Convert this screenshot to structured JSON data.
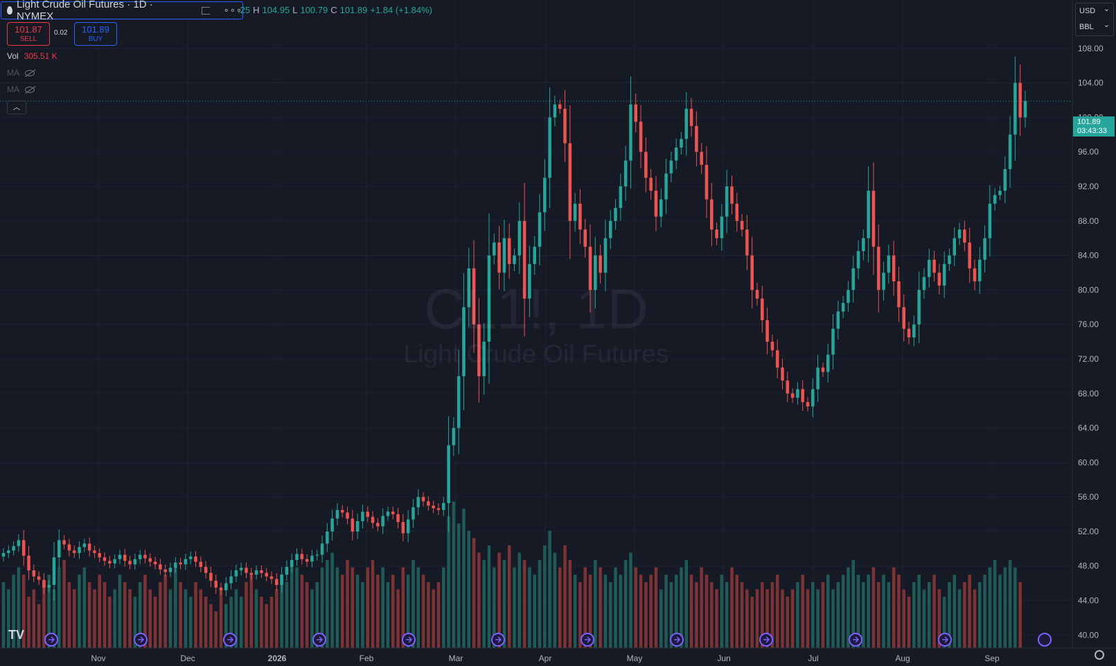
{
  "header": {
    "symbol_title": "Light Crude Oil Futures · 1D · NYMEX",
    "dots": "∘∘∘",
    "ohlc_open_fragment": ".25",
    "ohlc_h_label": "H",
    "ohlc_h": "104.95",
    "ohlc_l_label": "L",
    "ohlc_l": "100.79",
    "ohlc_c_label": "C",
    "ohlc_c": "101.89",
    "ohlc_change": "+1.84 (+1.84%)"
  },
  "trade": {
    "sell_price": "101.87",
    "sell_label": "SELL",
    "spread": "0.02",
    "buy_price": "101.89",
    "buy_label": "BUY"
  },
  "indicators": {
    "vol_label": "Vol",
    "vol_value": "305.51 K",
    "ma1_label": "MA",
    "ma2_label": "MA"
  },
  "watermark": {
    "symbol": "CL1!, 1D",
    "name": "Light Crude Oil Futures"
  },
  "scale": {
    "currency": "USD",
    "unit": "BBL"
  },
  "last_price": {
    "price": "101.89",
    "countdown": "03:43:33"
  },
  "colors": {
    "background": "#161a25",
    "up": "#26a69a",
    "down": "#ef5350",
    "vol_up": "#1e5a56",
    "vol_down": "#7d3235",
    "grid": "#1f2330",
    "axis_text": "#b2b5be",
    "event_icon": "#7b61ff"
  },
  "chart_data": {
    "type": "candlestick",
    "y_range": [
      38.5,
      112.0
    ],
    "y_ticks": [
      "40.00",
      "44.00",
      "48.00",
      "52.00",
      "56.00",
      "60.00",
      "64.00",
      "68.00",
      "72.00",
      "76.00",
      "80.00",
      "84.00",
      "88.00",
      "92.00",
      "96.00",
      "100.00",
      "104.00",
      "108.00"
    ],
    "x_labels": [
      "Nov",
      "Dec",
      "2026",
      "Feb",
      "Mar",
      "Apr",
      "May",
      "Jun",
      "Jul",
      "Aug",
      "Sep"
    ],
    "close_series": [
      49.5,
      49.8,
      50.3,
      51.0,
      49.2,
      47.5,
      46.8,
      46.4,
      45.5,
      45.8,
      49.0,
      51.0,
      50.5,
      49.8,
      49.5,
      50.2,
      50.6,
      49.8,
      49.5,
      49.0,
      48.6,
      48.3,
      48.8,
      49.3,
      48.6,
      48.2,
      48.8,
      49.3,
      48.9,
      48.5,
      48.2,
      47.6,
      47.3,
      47.8,
      48.4,
      48.2,
      48.8,
      49.1,
      48.5,
      47.9,
      47.2,
      46.3,
      45.5,
      45.2,
      46.0,
      46.8,
      47.5,
      47.8,
      47.2,
      47.0,
      47.5,
      47.2,
      46.8,
      46.5,
      45.8,
      47.0,
      47.9,
      48.7,
      49.4,
      48.8,
      48.5,
      49.2,
      49.3,
      50.6,
      52.0,
      53.5,
      54.5,
      54.2,
      53.5,
      52.0,
      53.2,
      54.3,
      53.7,
      53.0,
      52.6,
      53.8,
      54.3,
      54.0,
      53.1,
      51.8,
      53.4,
      54.8,
      56.0,
      55.5,
      55.0,
      54.7,
      54.5,
      55.3,
      62.0,
      64.0,
      70.0,
      78.0,
      82.5,
      76.0,
      70.0,
      74.0,
      84.0,
      85.5,
      82.0,
      86.0,
      83.0,
      84.0,
      88.0,
      79.0,
      83.0,
      85.0,
      89.0,
      93.0,
      100.0,
      101.5,
      101.0,
      97.0,
      88.0,
      90.0,
      87.0,
      85.0,
      80.0,
      84.0,
      82.0,
      86.0,
      88.0,
      89.5,
      92.0,
      95.0,
      101.5,
      99.5,
      96.0,
      93.0,
      91.5,
      88.5,
      90.5,
      93.5,
      95.0,
      96.5,
      97.5,
      101.0,
      99.0,
      96.0,
      94.5,
      90.5,
      87.0,
      86.0,
      88.5,
      92.0,
      90.0,
      88.0,
      87.0,
      84.0,
      80.0,
      79.0,
      76.5,
      74.0,
      73.0,
      71.0,
      69.5,
      68.0,
      67.5,
      68.5,
      67.0,
      66.5,
      68.5,
      71.0,
      70.5,
      72.5,
      75.5,
      77.5,
      78.5,
      80.0,
      82.5,
      84.5,
      86.0,
      91.5,
      85.0,
      80.0,
      82.0,
      84.0,
      81.0,
      78.0,
      75.5,
      74.5,
      76.0,
      80.0,
      81.5,
      83.5,
      82.0,
      80.5,
      83.0,
      84.0,
      86.0,
      87.0,
      85.5,
      82.5,
      81.0,
      83.5,
      86.0,
      90.0,
      91.0,
      91.5,
      94.0,
      98.0,
      104.0,
      100.0,
      101.89
    ],
    "volume_series": [
      0.45,
      0.4,
      0.5,
      0.55,
      0.5,
      0.35,
      0.4,
      0.3,
      0.45,
      0.5,
      0.4,
      0.55,
      0.6,
      0.45,
      0.4,
      0.5,
      0.55,
      0.45,
      0.4,
      0.5,
      0.45,
      0.35,
      0.4,
      0.5,
      0.45,
      0.4,
      0.35,
      0.45,
      0.5,
      0.4,
      0.35,
      0.45,
      0.5,
      0.4,
      0.55,
      0.45,
      0.4,
      0.35,
      0.45,
      0.4,
      0.35,
      0.3,
      0.25,
      0.4,
      0.3,
      0.35,
      0.4,
      0.35,
      0.45,
      0.5,
      0.4,
      0.35,
      0.3,
      0.35,
      0.4,
      0.5,
      0.45,
      0.6,
      0.55,
      0.5,
      0.45,
      0.4,
      0.45,
      0.55,
      0.6,
      0.65,
      0.55,
      0.5,
      0.6,
      0.55,
      0.5,
      0.45,
      0.55,
      0.6,
      0.5,
      0.55,
      0.45,
      0.5,
      0.4,
      0.55,
      0.5,
      0.6,
      0.55,
      0.5,
      0.45,
      0.4,
      0.45,
      0.55,
      0.9,
      1.0,
      0.85,
      0.95,
      0.8,
      0.75,
      0.65,
      0.6,
      0.7,
      0.55,
      0.65,
      0.6,
      0.7,
      0.55,
      0.65,
      0.6,
      0.55,
      0.5,
      0.6,
      0.7,
      0.8,
      0.65,
      0.55,
      0.7,
      0.6,
      0.5,
      0.45,
      0.55,
      0.5,
      0.6,
      0.55,
      0.5,
      0.45,
      0.55,
      0.5,
      0.6,
      0.65,
      0.55,
      0.5,
      0.45,
      0.5,
      0.55,
      0.4,
      0.5,
      0.45,
      0.5,
      0.55,
      0.6,
      0.5,
      0.45,
      0.55,
      0.5,
      0.45,
      0.4,
      0.5,
      0.45,
      0.55,
      0.5,
      0.45,
      0.4,
      0.35,
      0.4,
      0.45,
      0.4,
      0.45,
      0.5,
      0.4,
      0.35,
      0.4,
      0.45,
      0.5,
      0.4,
      0.45,
      0.4,
      0.45,
      0.5,
      0.4,
      0.45,
      0.5,
      0.55,
      0.6,
      0.5,
      0.45,
      0.5,
      0.55,
      0.45,
      0.5,
      0.45,
      0.55,
      0.5,
      0.4,
      0.35,
      0.45,
      0.5,
      0.4,
      0.45,
      0.5,
      0.4,
      0.35,
      0.45,
      0.5,
      0.4,
      0.45,
      0.5,
      0.4,
      0.45,
      0.5,
      0.55,
      0.6,
      0.5,
      0.55,
      0.6,
      0.55,
      0.45
    ],
    "event_markers_x": [
      "Nov",
      "Dec",
      "2026",
      "Feb",
      "Mar",
      "Apr",
      "May",
      "Jun",
      "Jul",
      "Aug",
      "Sep"
    ]
  }
}
